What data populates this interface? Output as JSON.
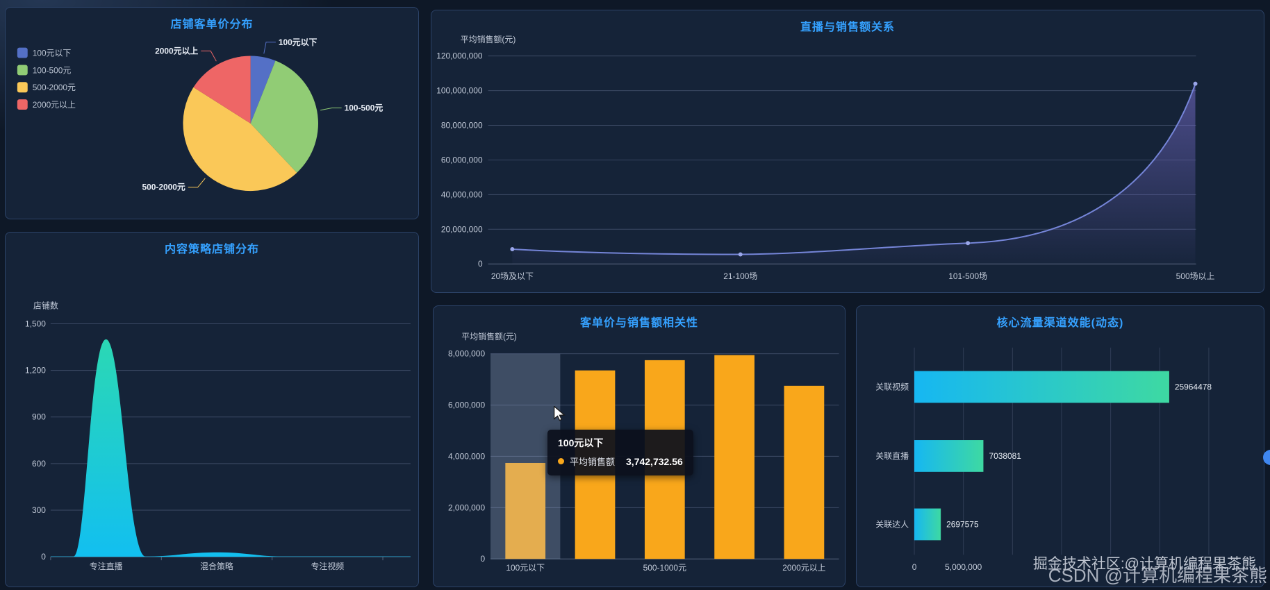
{
  "page": {
    "background": "#0e1827",
    "accent_title_color": "#35a1ff"
  },
  "panels": {
    "pie": {
      "title": "店铺客单价分布"
    },
    "line": {
      "title": "直播与销售额关系"
    },
    "strategy": {
      "title": "内容策略店铺分布"
    },
    "bar": {
      "title": "客单价与销售额相关性"
    },
    "hbar": {
      "title": "核心流量渠道效能(动态)"
    }
  },
  "tooltip": {
    "title": "100元以下",
    "series": "平均销售额",
    "value": "3,742,732.56"
  },
  "watermark": {
    "line1": "掘金技术社区:@计算机编程果茶熊",
    "line2": "CSDN @计算机编程果茶熊"
  },
  "chart_data": [
    {
      "type": "pie",
      "title": "店铺客单价分布",
      "legend": [
        "100元以下",
        "100-500元",
        "500-2000元",
        "2000元以上"
      ],
      "labels": [
        "100元以下",
        "100-500元",
        "500-2000元",
        "2000元以上"
      ],
      "values": [
        6,
        32,
        46,
        16
      ],
      "values_note": "estimated percent shares from pie geometry",
      "colors": [
        "#5470c6",
        "#91cc75",
        "#fac858",
        "#ee6666"
      ],
      "legend_position": "top-left"
    },
    {
      "type": "line",
      "title": "直播与销售额关系",
      "ylabel": "平均销售额(元)",
      "categories": [
        "20场及以下",
        "21-100场",
        "101-500场",
        "500场以上"
      ],
      "values": [
        8500000,
        5500000,
        12000000,
        104000000
      ],
      "ylim": [
        0,
        120000000
      ],
      "yticks": [
        "0",
        "20,000,000",
        "40,000,000",
        "60,000,000",
        "80,000,000",
        "100,000,000",
        "120,000,000"
      ],
      "line_color": "#7585d8",
      "area_color": "#7a6fd0",
      "smooth": true,
      "grid": true
    },
    {
      "type": "area",
      "title": "内容策略店铺分布",
      "ylabel": "店铺数",
      "categories": [
        "专注直播",
        "混合策略",
        "专注视频"
      ],
      "values": [
        1400,
        15,
        0
      ],
      "ylim": [
        0,
        1500
      ],
      "yticks": [
        "0",
        "300",
        "600",
        "900",
        "1,200",
        "1,500"
      ],
      "color_top": "#2bd8b4",
      "color_bottom": "#12bff0",
      "grid": true
    },
    {
      "type": "bar",
      "title": "客单价与销售额相关性",
      "ylabel": "平均销售额(元)",
      "categories": [
        "100元以下",
        "",
        "500-1000元",
        "",
        "2000元以上"
      ],
      "values": [
        3742732.56,
        7350000,
        7750000,
        7950000,
        6750000
      ],
      "ylim": [
        0,
        8000000
      ],
      "yticks": [
        "0",
        "2,000,000",
        "4,000,000",
        "6,000,000",
        "8,000,000"
      ],
      "bar_color": "#f9a71b",
      "highlight_index": 0,
      "grid": true
    },
    {
      "type": "hbar",
      "title": "核心流量渠道效能(动态)",
      "categories": [
        "关联视频",
        "关联直播",
        "关联达人"
      ],
      "values": [
        25964478,
        7038081,
        2697575
      ],
      "value_labels": [
        "25964478",
        "7038081",
        "2697575"
      ],
      "xlim": [
        0,
        30000000
      ],
      "xticks": [
        "0",
        "5,000,000"
      ],
      "bar_gradient": [
        "#16b7f2",
        "#3ed9a2"
      ],
      "grid": true
    }
  ]
}
